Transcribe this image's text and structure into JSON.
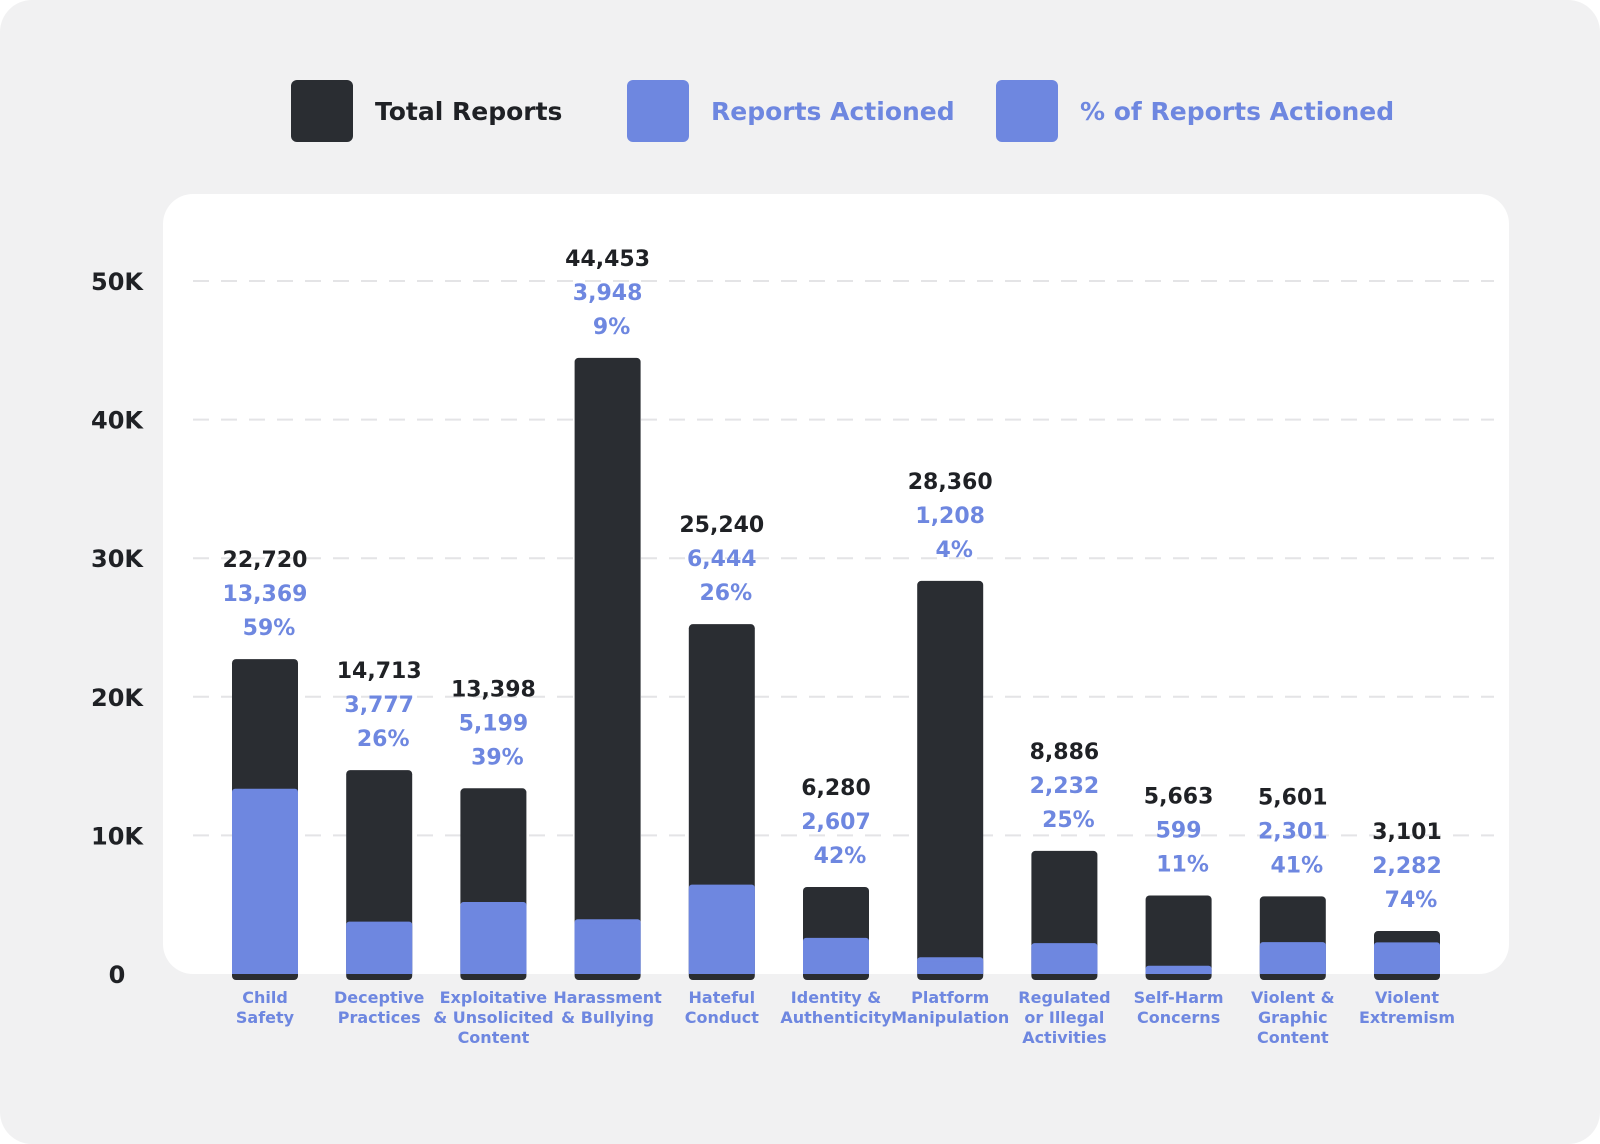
{
  "legend": {
    "total_label": "Total Reports",
    "actioned_label": "Reports Actioned",
    "percent_label": "% of Reports Actioned"
  },
  "colors": {
    "total": "#2a2d32",
    "actioned": "#6e87e0",
    "label_dark": "#1f2125",
    "label_blue": "#6e87e0",
    "grid": "#e4e4e6"
  },
  "chart_data": {
    "type": "bar",
    "stacked": "overlay",
    "ylim": [
      0,
      50000
    ],
    "yticks": [
      0,
      10000,
      20000,
      30000,
      40000,
      50000
    ],
    "ytick_labels": [
      "0",
      "10K",
      "20K",
      "30K",
      "40K",
      "50K"
    ],
    "grid": true,
    "legend_position": "top",
    "categories": [
      [
        "Child",
        "Safety"
      ],
      [
        "Deceptive",
        "Practices"
      ],
      [
        "Exploitative",
        "& Unsolicited",
        "Content"
      ],
      [
        "Harassment",
        "& Bullying"
      ],
      [
        "Hateful",
        "Conduct"
      ],
      [
        "Identity &",
        "Authenticity"
      ],
      [
        "Platform",
        "Manipulation"
      ],
      [
        "Regulated",
        "or Illegal",
        "Activities"
      ],
      [
        "Self-Harm",
        "Concerns"
      ],
      [
        "Violent &",
        "Graphic",
        "Content"
      ],
      [
        "Violent",
        "Extremism"
      ]
    ],
    "series": [
      {
        "name": "Total Reports",
        "values": [
          22720,
          14713,
          13398,
          44453,
          25240,
          6280,
          28360,
          8886,
          5663,
          5601,
          3101
        ],
        "labels": [
          "22,720",
          "14,713",
          "13,398",
          "44,453",
          "25,240",
          "6,280",
          "28,360",
          "8,886",
          "5,663",
          "5,601",
          "3,101"
        ]
      },
      {
        "name": "Reports Actioned",
        "values": [
          13369,
          3777,
          5199,
          3948,
          6444,
          2607,
          1208,
          2232,
          599,
          2301,
          2282
        ],
        "labels": [
          "13,369",
          "3,777",
          "5,199",
          "3,948",
          "6,444",
          "2,607",
          "1,208",
          "2,232",
          "599",
          "2,301",
          "2,282"
        ]
      },
      {
        "name": "% of Reports Actioned",
        "values": [
          59,
          26,
          39,
          9,
          26,
          42,
          4,
          25,
          11,
          41,
          74
        ],
        "labels": [
          "59%",
          "26%",
          "39%",
          "9%",
          "26%",
          "42%",
          "4%",
          "25%",
          "11%",
          "41%",
          "74%"
        ]
      }
    ]
  }
}
